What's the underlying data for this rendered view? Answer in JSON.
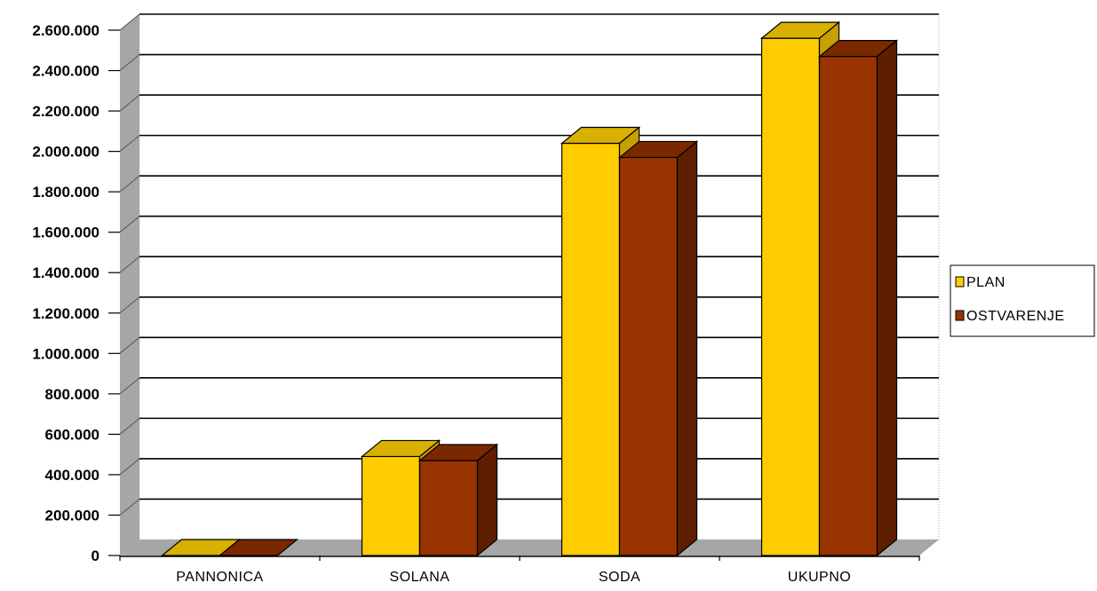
{
  "chart_data": {
    "type": "bar",
    "style": "3d-clustered-column",
    "categories": [
      "PANNONICA",
      "SOLANA",
      "SODA",
      "UKUPNO"
    ],
    "series": [
      {
        "name": "PLAN",
        "values": [
          0,
          490000,
          2040000,
          2560000
        ]
      },
      {
        "name": "OSTVARENJE",
        "values": [
          0,
          470000,
          1970000,
          2470000
        ]
      }
    ],
    "y_ticks": [
      "0",
      "200.000",
      "400.000",
      "600.000",
      "800.000",
      "1.000.000",
      "1.200.000",
      "1.400.000",
      "1.600.000",
      "1.800.000",
      "2.000.000",
      "2.200.000",
      "2.400.000",
      "2.600.000"
    ],
    "ylim": [
      0,
      2600000
    ],
    "grid": true,
    "legend_position": "right",
    "colors": {
      "plan_front": "#FFCC00",
      "plan_side": "#C8A000",
      "plan_top": "#D8B000",
      "ostvarenje_front": "#993300",
      "ostvarenje_side": "#5E1F00",
      "ostvarenje_top": "#7A2800",
      "wall": "#A6A6A6",
      "floor": "#A6A6A6"
    }
  }
}
